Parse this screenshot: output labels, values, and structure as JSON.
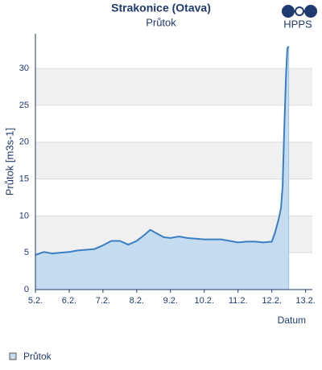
{
  "chart_data": {
    "type": "area",
    "title": "Strakonice (Otava)",
    "subtitle": "Průtok",
    "logo_text": "HPPS",
    "y_label": "Průtok [m3s-1]",
    "x_label": "Datum",
    "x": [
      5.0,
      5.25,
      5.5,
      5.75,
      6.0,
      6.25,
      6.5,
      6.75,
      7.0,
      7.25,
      7.5,
      7.75,
      8.0,
      8.25,
      8.4,
      8.6,
      8.8,
      9.0,
      9.25,
      9.5,
      9.75,
      10.0,
      10.25,
      10.5,
      10.75,
      11.0,
      11.25,
      11.5,
      11.75,
      12.0,
      12.1,
      12.2,
      12.27,
      12.32,
      12.37,
      12.42,
      12.46,
      12.5
    ],
    "series": [
      {
        "name": "Průtok",
        "color": "#3a7fc4",
        "fill": "#c5dbf0",
        "values": [
          4.7,
          5.1,
          4.9,
          5.0,
          5.1,
          5.3,
          5.4,
          5.5,
          6.0,
          6.6,
          6.6,
          6.1,
          6.6,
          7.5,
          8.1,
          7.6,
          7.1,
          7.0,
          7.2,
          7.0,
          6.9,
          6.8,
          6.8,
          6.8,
          6.6,
          6.4,
          6.5,
          6.5,
          6.4,
          6.5,
          7.8,
          9.5,
          11.0,
          14,
          22,
          29,
          32.7,
          33.0
        ]
      }
    ],
    "xlim": [
      5,
      13.2
    ],
    "ylim": [
      0,
      34.7
    ],
    "xticks": [
      {
        "value": 5,
        "label": "5.2."
      },
      {
        "value": 6,
        "label": "6.2."
      },
      {
        "value": 7,
        "label": "7.2."
      },
      {
        "value": 8,
        "label": "8.2."
      },
      {
        "value": 9,
        "label": "9.2."
      },
      {
        "value": 10,
        "label": "10.2."
      },
      {
        "value": 11,
        "label": "11.2."
      },
      {
        "value": 12,
        "label": "12.2."
      },
      {
        "value": 13,
        "label": "13.2."
      }
    ],
    "yticks": [
      0,
      5,
      10,
      15,
      20,
      25,
      30
    ],
    "grid": true
  }
}
